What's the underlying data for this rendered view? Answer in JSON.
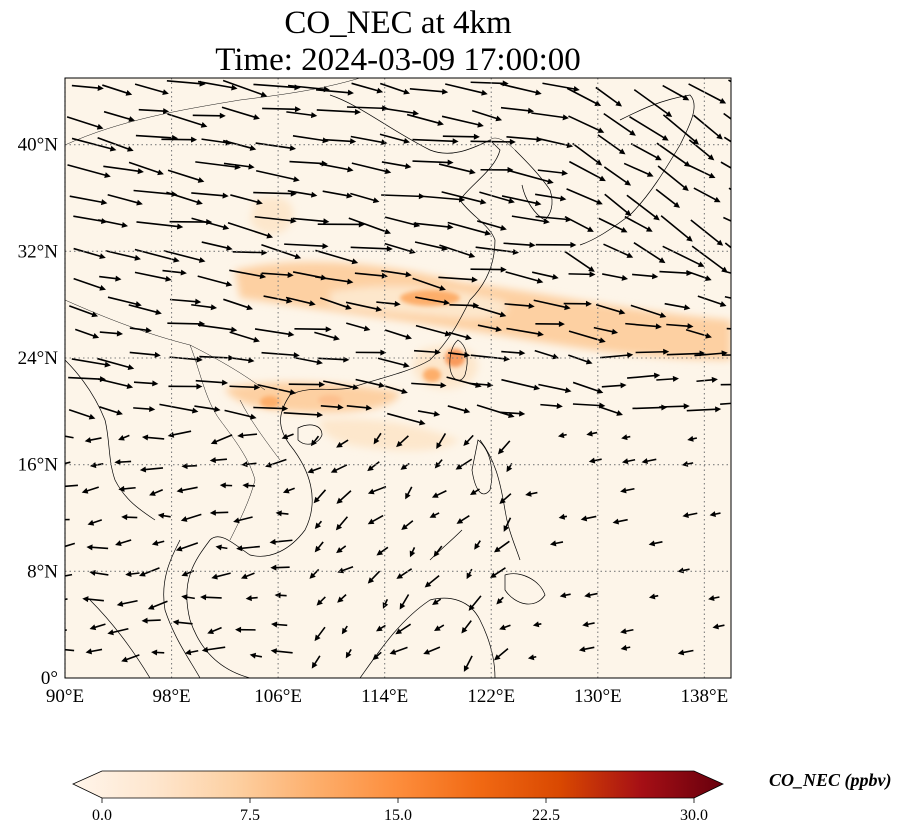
{
  "title": {
    "line1": "CO_NEC at 4km",
    "line2": "Time: 2024-03-09 17:00:00"
  },
  "map": {
    "lon_range": [
      90,
      140
    ],
    "lat_range": [
      0,
      45
    ],
    "lon_ticks": [
      "90°E",
      "98°E",
      "106°E",
      "114°E",
      "122°E",
      "130°E",
      "138°E"
    ],
    "lat_ticks": [
      "0°",
      "8°N",
      "16°N",
      "24°N",
      "32°N",
      "40°N"
    ],
    "gridlines": "dotted",
    "background_color": "#fdf5e9",
    "plume_colors": [
      "#fde7cc",
      "#fdd0a2",
      "#fdae6b",
      "#f16913"
    ]
  },
  "colorbar": {
    "label": "CO_NEC (ppbv)",
    "min": 0.0,
    "max": 30.0,
    "ticks": [
      "0.0",
      "7.5",
      "15.0",
      "22.5",
      "30.0"
    ],
    "extend": "both",
    "colormap": [
      "#fff5eb",
      "#fee6ce",
      "#fdd0a2",
      "#fdae6b",
      "#fd8d3c",
      "#f16913",
      "#d94801",
      "#a50f15",
      "#67000d"
    ]
  }
}
